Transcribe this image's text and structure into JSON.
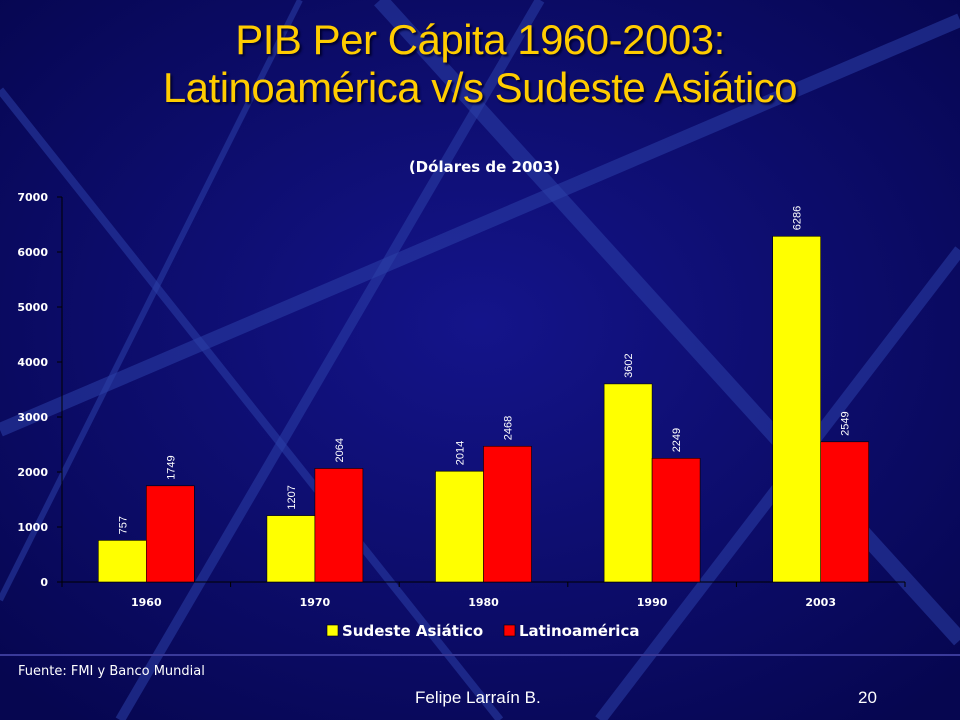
{
  "slide": {
    "title_line1": "PIB Per Cápita 1960-2003:",
    "title_line2": "Latinoamérica v/s Sudeste Asiático",
    "source": "Fuente: FMI y Banco Mundial",
    "author": "Felipe Larraín B.",
    "page_number": "20"
  },
  "colors": {
    "background": "#0a0a6e",
    "title": "#ffcc00",
    "series_asia": "#ffff00",
    "series_latam": "#ff0000"
  },
  "chart_data": {
    "type": "bar",
    "title": "(Dólares de 2003)",
    "xlabel": "",
    "ylabel": "",
    "categories": [
      "1960",
      "1970",
      "1980",
      "1990",
      "2003"
    ],
    "series": [
      {
        "name": "Sudeste Asiático",
        "values": [
          757,
          1207,
          2014,
          3602,
          6286
        ]
      },
      {
        "name": "Latinoamérica",
        "values": [
          1749,
          2064,
          2468,
          2249,
          2549
        ]
      }
    ],
    "ylim": [
      0,
      7000
    ],
    "yticks": [
      0,
      1000,
      2000,
      3000,
      4000,
      5000,
      6000,
      7000
    ],
    "grid": false,
    "legend_position": "bottom",
    "data_labels": true
  }
}
